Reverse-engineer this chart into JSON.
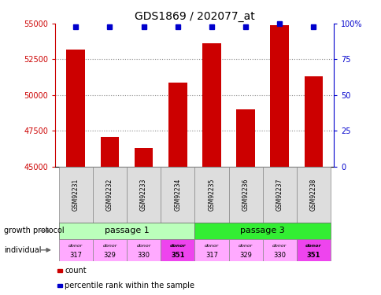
{
  "title": "GDS1869 / 202077_at",
  "samples": [
    "GSM92231",
    "GSM92232",
    "GSM92233",
    "GSM92234",
    "GSM92235",
    "GSM92236",
    "GSM92237",
    "GSM92238"
  ],
  "counts": [
    53200,
    47100,
    46300,
    50900,
    53600,
    49000,
    54900,
    51300
  ],
  "percentiles": [
    98,
    98,
    98,
    98,
    98,
    98,
    100,
    98
  ],
  "ylim": [
    45000,
    55000
  ],
  "yticks": [
    45000,
    47500,
    50000,
    52500,
    55000
  ],
  "right_yticks": [
    0,
    25,
    50,
    75,
    100
  ],
  "bar_color": "#cc0000",
  "dot_color": "#0000cc",
  "passage1_color": "#bbffbb",
  "passage3_color": "#33ee33",
  "donor_colors_light": "#ffaaff",
  "donor_colors_dark": "#ee44ee",
  "donor_bold": [
    false,
    false,
    false,
    true,
    false,
    false,
    false,
    true
  ],
  "passage_labels": [
    "passage 1",
    "passage 3"
  ],
  "growth_protocol_label": "growth protocol",
  "individual_label": "individual",
  "legend_count_label": "count",
  "legend_percentile_label": "percentile rank within the sample",
  "grid_color": "#888888",
  "axis_color_left": "#cc0000",
  "axis_color_right": "#0000cc",
  "donor_numbers": [
    "317",
    "329",
    "330",
    "351",
    "317",
    "329",
    "330",
    "351"
  ]
}
